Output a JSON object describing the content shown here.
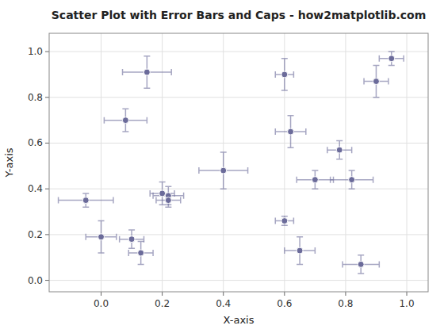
{
  "chart_data": {
    "type": "scatter",
    "title": "Scatter Plot with Error Bars and Caps - how2matplotlib.com",
    "xlabel": "X-axis",
    "ylabel": "Y-axis",
    "x": [
      0.08,
      0.15,
      -0.05,
      0.0,
      0.1,
      0.13,
      0.2,
      0.22,
      0.22,
      0.4,
      0.6,
      0.62,
      0.6,
      0.65,
      0.7,
      0.78,
      0.82,
      0.85,
      0.9,
      0.95
    ],
    "values": [
      0.7,
      0.91,
      0.35,
      0.19,
      0.18,
      0.12,
      0.38,
      0.37,
      0.35,
      0.48,
      0.9,
      0.65,
      0.26,
      0.13,
      0.44,
      0.57,
      0.44,
      0.07,
      0.87,
      0.97
    ],
    "xerr": [
      0.07,
      0.08,
      0.09,
      0.05,
      0.04,
      0.04,
      0.04,
      0.05,
      0.04,
      0.08,
      0.03,
      0.05,
      0.03,
      0.05,
      0.06,
      0.04,
      0.07,
      0.06,
      0.04,
      0.04
    ],
    "yerr": [
      0.05,
      0.07,
      0.03,
      0.07,
      0.04,
      0.05,
      0.05,
      0.04,
      0.03,
      0.08,
      0.07,
      0.07,
      0.02,
      0.06,
      0.04,
      0.04,
      0.04,
      0.04,
      0.07,
      0.03
    ],
    "color": "#6b6b9a",
    "marker": "circle",
    "xlim": [
      -0.17,
      1.07
    ],
    "ylim": [
      -0.05,
      1.08
    ],
    "xticks": [
      {
        "value": 0,
        "label": "0.0"
      },
      0.2,
      0.4,
      0.6,
      0.8,
      {
        "value": 1,
        "label": "1.0"
      }
    ],
    "yticks": [
      {
        "value": 0,
        "label": "0.0"
      },
      0.2,
      0.4,
      0.6,
      0.8,
      {
        "value": 1,
        "label": "1.0"
      }
    ],
    "grid": true
  }
}
